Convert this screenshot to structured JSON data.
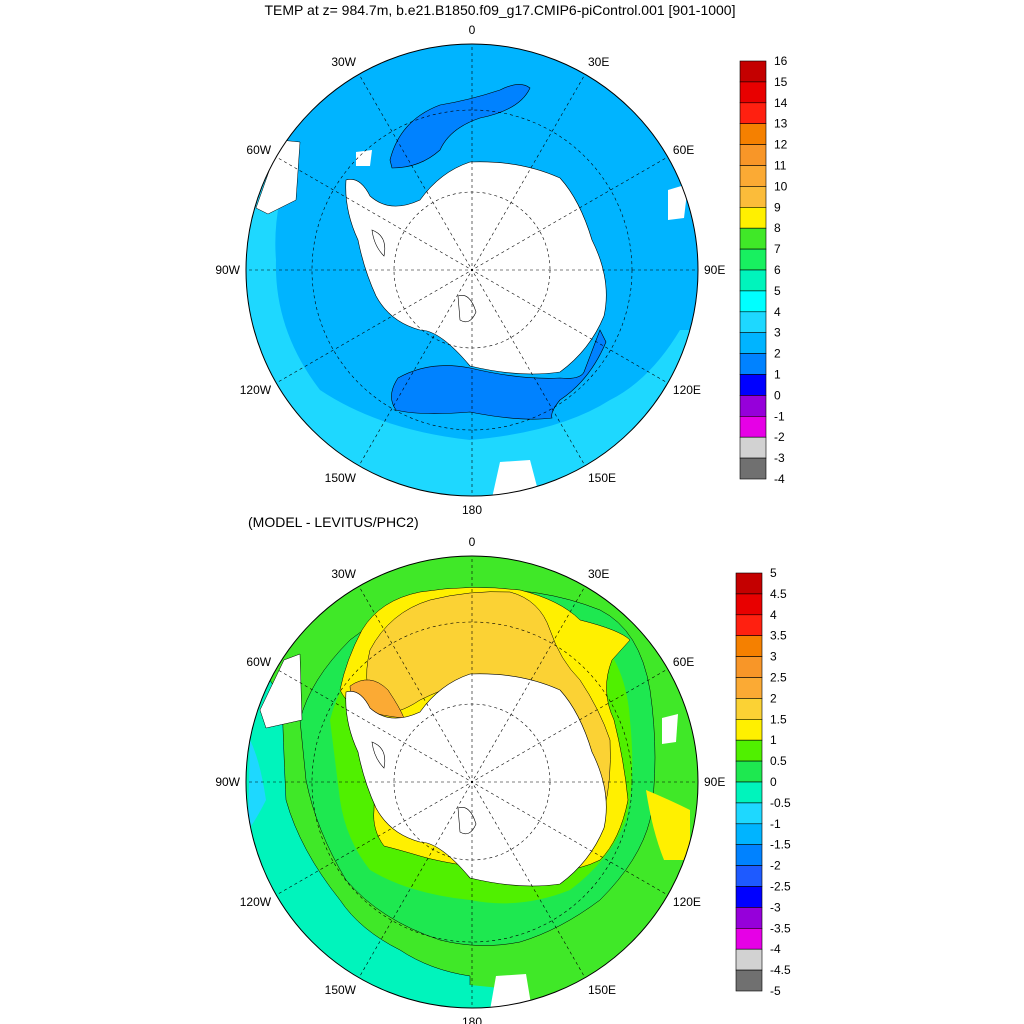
{
  "top_panel": {
    "title": "TEMP at z= 984.7m, b.e21.B1850.f09_g17.CMIP6-piControl.001 [901-1000]",
    "longitude_labels": [
      "0",
      "30E",
      "60E",
      "90E",
      "120E",
      "150E",
      "180",
      "150W",
      "120W",
      "90W",
      "60W",
      "30W"
    ],
    "colorbar": {
      "labels": [
        "16",
        "15",
        "14",
        "13",
        "12",
        "11",
        "10",
        "9",
        "8",
        "7",
        "6",
        "5",
        "4",
        "3",
        "2",
        "1",
        "0",
        "-1",
        "-2",
        "-3",
        "-4"
      ],
      "colors": [
        "#c40000",
        "#e80000",
        "#ff2010",
        "#f58000",
        "#f89628",
        "#fbaa34",
        "#fbbc3a",
        "#fff000",
        "#40e828",
        "#18f060",
        "#00f4bc",
        "#00ffff",
        "#1ed8ff",
        "#00b4ff",
        "#0082ff",
        "#0000ff",
        "#9600da",
        "#e600e6",
        "#d2d2d2",
        "#707070"
      ]
    },
    "dominant_fill": "#00b4ff"
  },
  "bottom_panel": {
    "title": "(MODEL - LEVITUS/PHC2)",
    "longitude_labels": [
      "0",
      "30E",
      "60E",
      "90E",
      "120E",
      "150E",
      "180",
      "150W",
      "120W",
      "90W",
      "60W",
      "30W"
    ],
    "colorbar": {
      "labels": [
        "5",
        "4.5",
        "4",
        "3.5",
        "3",
        "2.5",
        "2",
        "1.5",
        "1",
        "0.5",
        "0",
        "-0.5",
        "-1",
        "-1.5",
        "-2",
        "-2.5",
        "-3",
        "-3.5",
        "-4",
        "-4.5",
        "-5"
      ],
      "colors": [
        "#c40000",
        "#e80000",
        "#ff2010",
        "#f58000",
        "#f89628",
        "#fbaa34",
        "#fbd234",
        "#fff000",
        "#50f000",
        "#1ee850",
        "#00f4bc",
        "#1ed8ff",
        "#00b4ff",
        "#0082ff",
        "#1e5aff",
        "#0000ff",
        "#9600da",
        "#e600e6",
        "#d2d2d2",
        "#707070"
      ]
    },
    "dominant_fill": "#40e828"
  }
}
